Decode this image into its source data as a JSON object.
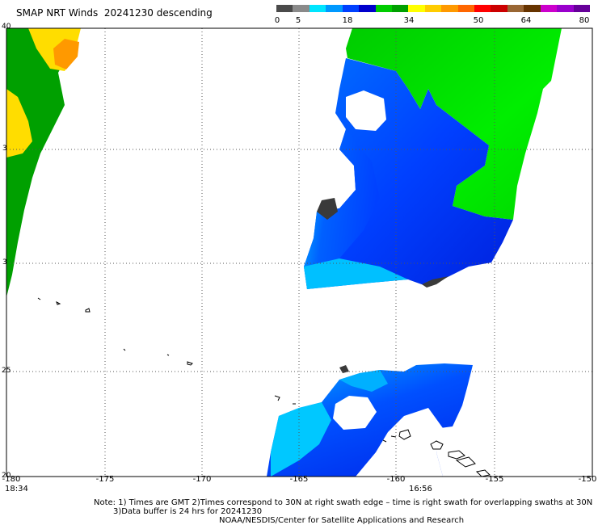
{
  "header": {
    "title": "SMAP NRT Winds  20241230 descending"
  },
  "colorbar": {
    "labels": [
      "0",
      "5",
      "18",
      "34",
      "50",
      "64",
      "80"
    ],
    "segments": [
      {
        "color": "#4a4a4a"
      },
      {
        "color": "#8a8a8a"
      },
      {
        "color": "#00e5ff"
      },
      {
        "color": "#0099ff"
      },
      {
        "color": "#0040ff"
      },
      {
        "color": "#0000cc"
      },
      {
        "color": "#00cc00"
      },
      {
        "color": "#00a000"
      },
      {
        "color": "#ffff00"
      },
      {
        "color": "#ffcc00"
      },
      {
        "color": "#ff9900"
      },
      {
        "color": "#ff6600"
      },
      {
        "color": "#ff0000"
      },
      {
        "color": "#cc0000"
      },
      {
        "color": "#996633"
      },
      {
        "color": "#663300"
      },
      {
        "color": "#cc00cc"
      },
      {
        "color": "#9900cc"
      },
      {
        "color": "#660099"
      }
    ]
  },
  "axes": {
    "lat_labels": [
      "40",
      "3",
      "3",
      "25",
      "20"
    ],
    "lon_labels": [
      "-180",
      "-175",
      "-170",
      "-165",
      "-160",
      "-155",
      "-150"
    ]
  },
  "times": {
    "left": "18:34",
    "center": "16:56"
  },
  "notes": {
    "line1": "Note: 1) Times are GMT 2)Times correspond to 30N at right swath edge – time is right swath for overlapping swaths at 30N",
    "line2": "3)Data buffer is 24 hrs for 20241230",
    "line3": "NOAA/NESDIS/Center for Satellite Applications and Research"
  },
  "colors": {
    "light_cyan": "#00e5ff",
    "light_blue": "#0099ff",
    "blue": "#0040ff",
    "dark_blue": "#0000cc",
    "green": "#00e000",
    "dark_green": "#00a000",
    "yellow": "#ffdd00",
    "orange": "#ff9900",
    "dark_gray": "#3a3a3a"
  }
}
